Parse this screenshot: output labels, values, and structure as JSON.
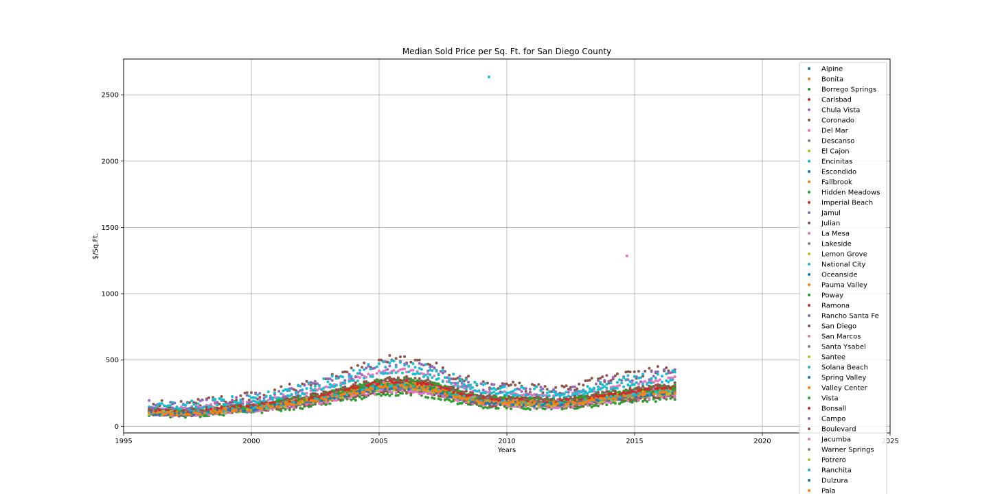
{
  "chart_data": {
    "type": "scatter",
    "title": "Median Sold Price per Sq. Ft. for San Diego County",
    "xlabel": "Years",
    "ylabel": "$/Sq.Ft.",
    "xlim": [
      1995,
      2025
    ],
    "ylim": [
      -50,
      2770
    ],
    "xticks": [
      1995,
      2000,
      2005,
      2010,
      2015,
      2020,
      2025
    ],
    "yticks": [
      0,
      500,
      1000,
      1500,
      2000,
      2500
    ],
    "grid": true,
    "legend_position": "right",
    "series": [
      {
        "name": "Alpine",
        "color": "#1f77b4"
      },
      {
        "name": "Bonita",
        "color": "#ff7f0e"
      },
      {
        "name": "Borrego Springs",
        "color": "#2ca02c"
      },
      {
        "name": "Carlsbad",
        "color": "#d62728"
      },
      {
        "name": "Chula Vista",
        "color": "#9467bd"
      },
      {
        "name": "Coronado",
        "color": "#8c564b"
      },
      {
        "name": "Del Mar",
        "color": "#e377c2"
      },
      {
        "name": "Descanso",
        "color": "#7f7f7f"
      },
      {
        "name": "El Cajon",
        "color": "#bcbd22"
      },
      {
        "name": "Encinitas",
        "color": "#17becf"
      },
      {
        "name": "Escondido",
        "color": "#1f77b4"
      },
      {
        "name": "Fallbrook",
        "color": "#ff7f0e"
      },
      {
        "name": "Hidden Meadows",
        "color": "#2ca02c"
      },
      {
        "name": "Imperial Beach",
        "color": "#d62728"
      },
      {
        "name": "Jamul",
        "color": "#9467bd"
      },
      {
        "name": "Julian",
        "color": "#8c564b"
      },
      {
        "name": "La Mesa",
        "color": "#e377c2"
      },
      {
        "name": "Lakeside",
        "color": "#7f7f7f"
      },
      {
        "name": "Lemon Grove",
        "color": "#bcbd22"
      },
      {
        "name": "National City",
        "color": "#17becf"
      },
      {
        "name": "Oceanside",
        "color": "#1f77b4"
      },
      {
        "name": "Pauma Valley",
        "color": "#ff7f0e"
      },
      {
        "name": "Poway",
        "color": "#2ca02c"
      },
      {
        "name": "Ramona",
        "color": "#d62728"
      },
      {
        "name": "Rancho Santa Fe",
        "color": "#9467bd"
      },
      {
        "name": "San Diego",
        "color": "#8c564b"
      },
      {
        "name": "San Marcos",
        "color": "#e377c2"
      },
      {
        "name": "Santa Ysabel",
        "color": "#7f7f7f"
      },
      {
        "name": "Santee",
        "color": "#bcbd22"
      },
      {
        "name": "Solana Beach",
        "color": "#17becf"
      },
      {
        "name": "Spring Valley",
        "color": "#1f77b4"
      },
      {
        "name": "Valley Center",
        "color": "#ff7f0e"
      },
      {
        "name": "Vista",
        "color": "#2ca02c"
      },
      {
        "name": "Bonsall",
        "color": "#d62728"
      },
      {
        "name": "Campo",
        "color": "#9467bd"
      },
      {
        "name": "Boulevard",
        "color": "#8c564b"
      },
      {
        "name": "Jacumba",
        "color": "#e377c2"
      },
      {
        "name": "Warner Springs",
        "color": "#7f7f7f"
      },
      {
        "name": "Potrero",
        "color": "#bcbd22"
      },
      {
        "name": "Ranchita",
        "color": "#17becf"
      },
      {
        "name": "Dulzura",
        "color": "#1f77b4"
      },
      {
        "name": "Pala",
        "color": "#ff7f0e"
      }
    ],
    "trend_points": [
      {
        "x": 1996.0,
        "y": 110
      },
      {
        "x": 1997.0,
        "y": 100
      },
      {
        "x": 1998.0,
        "y": 110
      },
      {
        "x": 1999.0,
        "y": 125
      },
      {
        "x": 2000.0,
        "y": 140
      },
      {
        "x": 2001.0,
        "y": 165
      },
      {
        "x": 2002.0,
        "y": 190
      },
      {
        "x": 2003.0,
        "y": 225
      },
      {
        "x": 2004.0,
        "y": 270
      },
      {
        "x": 2005.0,
        "y": 310
      },
      {
        "x": 2006.0,
        "y": 320
      },
      {
        "x": 2007.0,
        "y": 295
      },
      {
        "x": 2008.0,
        "y": 240
      },
      {
        "x": 2009.0,
        "y": 195
      },
      {
        "x": 2010.0,
        "y": 190
      },
      {
        "x": 2011.0,
        "y": 180
      },
      {
        "x": 2012.0,
        "y": 175
      },
      {
        "x": 2013.0,
        "y": 195
      },
      {
        "x": 2014.0,
        "y": 225
      },
      {
        "x": 2015.0,
        "y": 245
      },
      {
        "x": 2016.0,
        "y": 265
      },
      {
        "x": 2016.6,
        "y": 275
      }
    ],
    "series_offsets": {
      "Alpine": 0,
      "Bonita": -10,
      "Borrego Springs": -60,
      "Carlsbad": 20,
      "Chula Vista": -15,
      "Coronado": 150,
      "Del Mar": 80,
      "Descanso": 5,
      "El Cajon": -20,
      "Encinitas": 70,
      "Escondido": -10,
      "Fallbrook": 0,
      "Hidden Meadows": 30,
      "Imperial Beach": -5,
      "Jamul": 15,
      "Julian": 40,
      "La Mesa": 10,
      "Lakeside": 0,
      "Lemon Grove": -10,
      "National City": -25,
      "Oceanside": 5,
      "Pauma Valley": 0,
      "Poway": 25,
      "Ramona": -5,
      "Rancho Santa Fe": 120,
      "San Diego": 20,
      "San Marcos": 5,
      "Santa Ysabel": -5,
      "Santee": 0,
      "Solana Beach": 120,
      "Spring Valley": -10,
      "Valley Center": 0,
      "Vista": 0,
      "Bonsall": 15,
      "Campo": -30,
      "Boulevard": -40,
      "Jacumba": -40,
      "Warner Springs": -20,
      "Potrero": -25,
      "Ranchita": -10,
      "Dulzura": -20,
      "Pala": -15
    },
    "outliers": [
      {
        "series": "Encinitas",
        "x": 2009.3,
        "y": 2635
      },
      {
        "series": "Del Mar",
        "x": 2014.7,
        "y": 1285
      }
    ]
  }
}
